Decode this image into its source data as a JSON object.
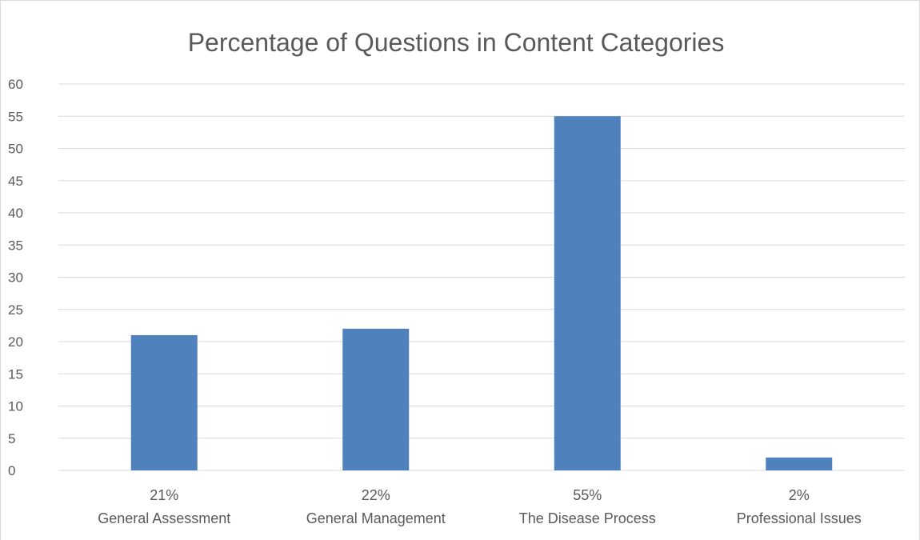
{
  "chart_data": {
    "type": "bar",
    "title": "Percentage of Questions in Content Categories",
    "categories": [
      "General Assessment",
      "General Management",
      "The Disease Process",
      "Professional Issues"
    ],
    "category_value_labels": [
      "21%",
      "22%",
      "55%",
      "2%"
    ],
    "values": [
      21,
      22,
      55,
      2
    ],
    "xlabel": "",
    "ylabel": "",
    "ylim": [
      0,
      60
    ],
    "yticks": [
      0,
      5,
      10,
      15,
      20,
      25,
      30,
      35,
      40,
      45,
      50,
      55,
      60
    ],
    "grid": true,
    "legend": "none",
    "bar_color": "#4f81bd",
    "grid_color": "#d9d9d9"
  }
}
